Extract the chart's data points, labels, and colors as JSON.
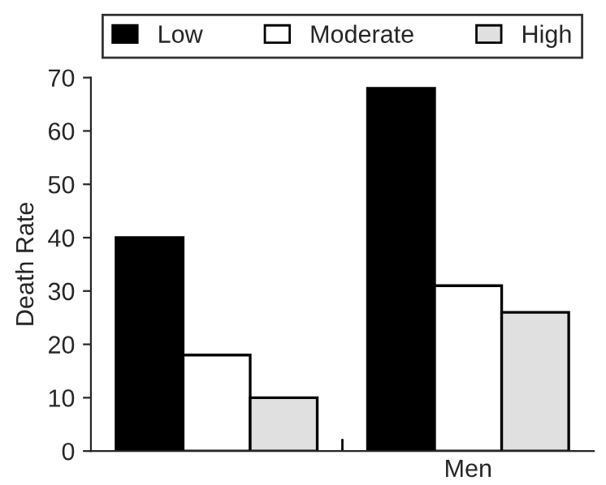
{
  "chart_data": {
    "type": "bar",
    "ylabel": "Death Rate",
    "categories": [
      null,
      "Men"
    ],
    "series": [
      {
        "name": "Low",
        "color": "#000000",
        "values": [
          40,
          68
        ]
      },
      {
        "name": "Moderate",
        "color": "#ffffff",
        "values": [
          18,
          31
        ]
      },
      {
        "name": "High",
        "color": "#e0e0e0",
        "values": [
          10,
          26
        ]
      }
    ],
    "ylim": [
      0,
      70
    ],
    "yticks": [
      0,
      10,
      20,
      30,
      40,
      50,
      60,
      70
    ],
    "grid": false,
    "legend": "top"
  }
}
